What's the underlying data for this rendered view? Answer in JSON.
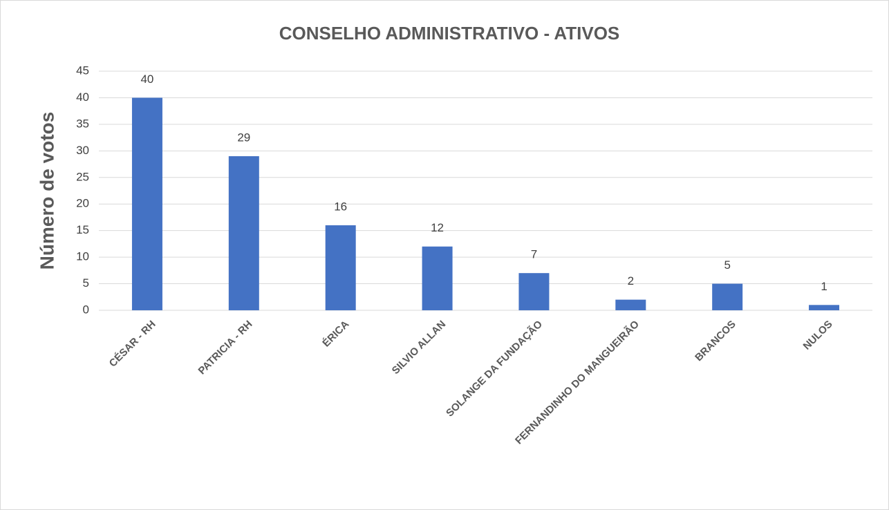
{
  "chart_data": {
    "type": "bar",
    "title": "CONSELHO ADMINISTRATIVO - ATIVOS",
    "y_label": "Número de votos",
    "categories": [
      "CÉSAR - RH",
      "PATRICIA - RH",
      "ÉRICA",
      "SILVIO ALLAN",
      "SOLANGE DA FUNDAÇÃO",
      "FERNANDINHO DO MANGUEIRÃO",
      "BRANCOS",
      "NULOS"
    ],
    "values": [
      40,
      29,
      16,
      12,
      7,
      2,
      5,
      1
    ],
    "color": "#4472c4",
    "ylim": [
      0,
      45
    ],
    "yticks": [
      0,
      5,
      10,
      15,
      20,
      25,
      30,
      35,
      40,
      45
    ],
    "grid": true
  }
}
